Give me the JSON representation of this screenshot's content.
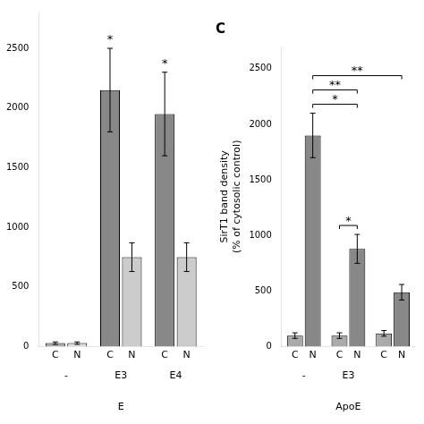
{
  "chart_data": [
    {
      "type": "bar",
      "categories": [
        "-",
        "E3",
        "E4"
      ],
      "series": [
        {
          "name": "C",
          "colors": [
            "#aaaaaa",
            "#888888",
            "#888888"
          ],
          "values": [
            30,
            2150,
            1950
          ],
          "errors": [
            10,
            350,
            350
          ]
        },
        {
          "name": "N",
          "colors": [
            "#dddddd",
            "#cccccc",
            "#cccccc"
          ],
          "values": [
            30,
            750,
            750
          ],
          "errors": [
            10,
            120,
            120
          ]
        }
      ],
      "xlabel": "E",
      "ylim": [
        0,
        2800
      ],
      "yticks": [
        0,
        500,
        1000,
        1500,
        2000,
        2500
      ],
      "grid": false,
      "annotations": [
        {
          "text": "*",
          "series": "C",
          "category": 1
        },
        {
          "text": "*",
          "series": "C",
          "category": 2
        }
      ]
    },
    {
      "type": "bar",
      "title": "C",
      "categories": [
        "-",
        "E3",
        null
      ],
      "series": [
        {
          "name": "C",
          "color": "#aaaaaa",
          "values": [
            100,
            100,
            120
          ],
          "errors": [
            25,
            25,
            25
          ]
        },
        {
          "name": "N",
          "color": "#888888",
          "values": [
            1900,
            880,
            490
          ],
          "errors": [
            200,
            130,
            70
          ]
        }
      ],
      "xlabel": "ApoE",
      "ylabel": "SirT1 band density\n(% of cytosolic control)",
      "ylim": [
        0,
        2700
      ],
      "yticks": [
        0,
        500,
        1000,
        1500,
        2000,
        2500
      ],
      "grid": false,
      "annotations": [
        {
          "text": "*",
          "from": {
            "series": "C",
            "category": 1
          },
          "to": {
            "series": "N",
            "category": 1
          }
        },
        {
          "text": "*",
          "from": {
            "series": "N",
            "category": 0
          },
          "to": {
            "series": "N",
            "category": 1
          }
        },
        {
          "text": "**",
          "from": {
            "series": "N",
            "category": 0
          },
          "to": {
            "series": "N",
            "category": 1
          }
        },
        {
          "text": "**",
          "from": {
            "series": "N",
            "category": 0
          },
          "to": {
            "series": "N",
            "category": 2
          }
        }
      ]
    }
  ]
}
